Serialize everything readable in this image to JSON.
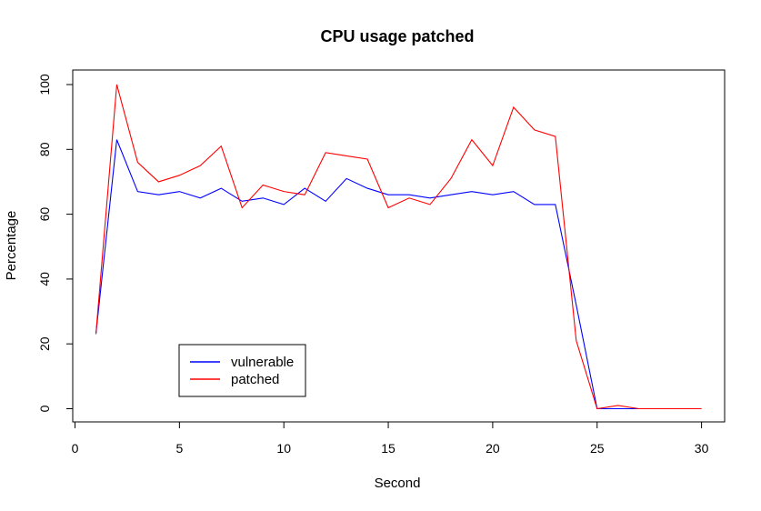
{
  "chart_data": {
    "type": "line",
    "title": "CPU usage patched",
    "xlabel": "Second",
    "ylabel": "Percentage",
    "xlim": [
      1,
      30
    ],
    "ylim": [
      0,
      100
    ],
    "xticks": [
      0,
      5,
      10,
      15,
      20,
      25,
      30
    ],
    "yticks": [
      0,
      20,
      40,
      60,
      80,
      100
    ],
    "grid": false,
    "legend_position": "bottom-left",
    "x": [
      1,
      2,
      3,
      4,
      5,
      6,
      7,
      8,
      9,
      10,
      11,
      12,
      13,
      14,
      15,
      16,
      17,
      18,
      19,
      20,
      21,
      22,
      23,
      24,
      25,
      26,
      27,
      28,
      29,
      30
    ],
    "series": [
      {
        "name": "vulnerable",
        "color": "#0000ff",
        "values": [
          23,
          83,
          67,
          66,
          67,
          65,
          68,
          64,
          65,
          63,
          68,
          64,
          71,
          68,
          66,
          66,
          65,
          66,
          67,
          66,
          67,
          63,
          63,
          32,
          0,
          0,
          0,
          0,
          0,
          0
        ]
      },
      {
        "name": "patched",
        "color": "#ff0000",
        "values": [
          23,
          100,
          76,
          70,
          72,
          75,
          81,
          62,
          69,
          67,
          66,
          79,
          78,
          77,
          62,
          65,
          63,
          71,
          83,
          75,
          93,
          86,
          84,
          21,
          0,
          1,
          0,
          0,
          0,
          0
        ]
      }
    ]
  }
}
